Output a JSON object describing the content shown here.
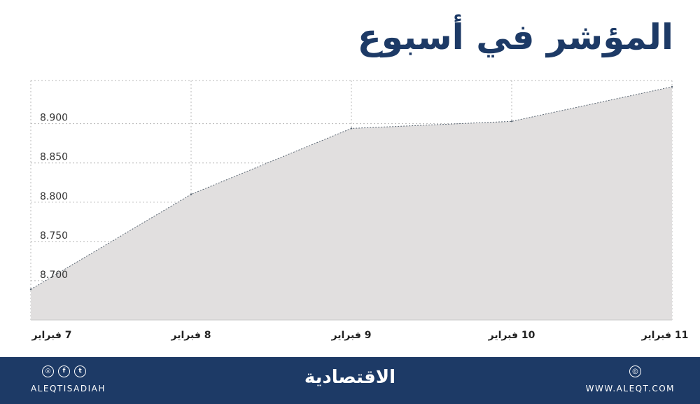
{
  "chart_data": {
    "type": "area",
    "title": "المؤشر في أسبوع",
    "categories": [
      "7 فبراير",
      "8 فبراير",
      "9 فبراير",
      "10 فبراير",
      "11 فبراير"
    ],
    "values": [
      8689,
      8810,
      8894,
      8903,
      8947
    ],
    "y_ticks": [
      "8.700",
      "8.750",
      "8.800",
      "8.850",
      "8.900"
    ],
    "y_tick_values": [
      8700,
      8750,
      8800,
      8850,
      8900
    ],
    "ylim": [
      8650,
      8955
    ],
    "grid": true,
    "colors": {
      "fill": "#e1dfdf",
      "line": "#5b6773",
      "grid": "#b8b8b8",
      "title": "#1d3a66"
    }
  },
  "footer": {
    "social_icons": [
      "instagram-icon",
      "facebook-icon",
      "twitter-icon"
    ],
    "social_icon_glyphs": [
      "◎",
      "f",
      "t"
    ],
    "handle": "ALEQTISADIAH",
    "brand": "الاقتصادية",
    "website_icon": "◎",
    "website": "WWW.ALEQT.COM",
    "background": "#1d3a66"
  }
}
